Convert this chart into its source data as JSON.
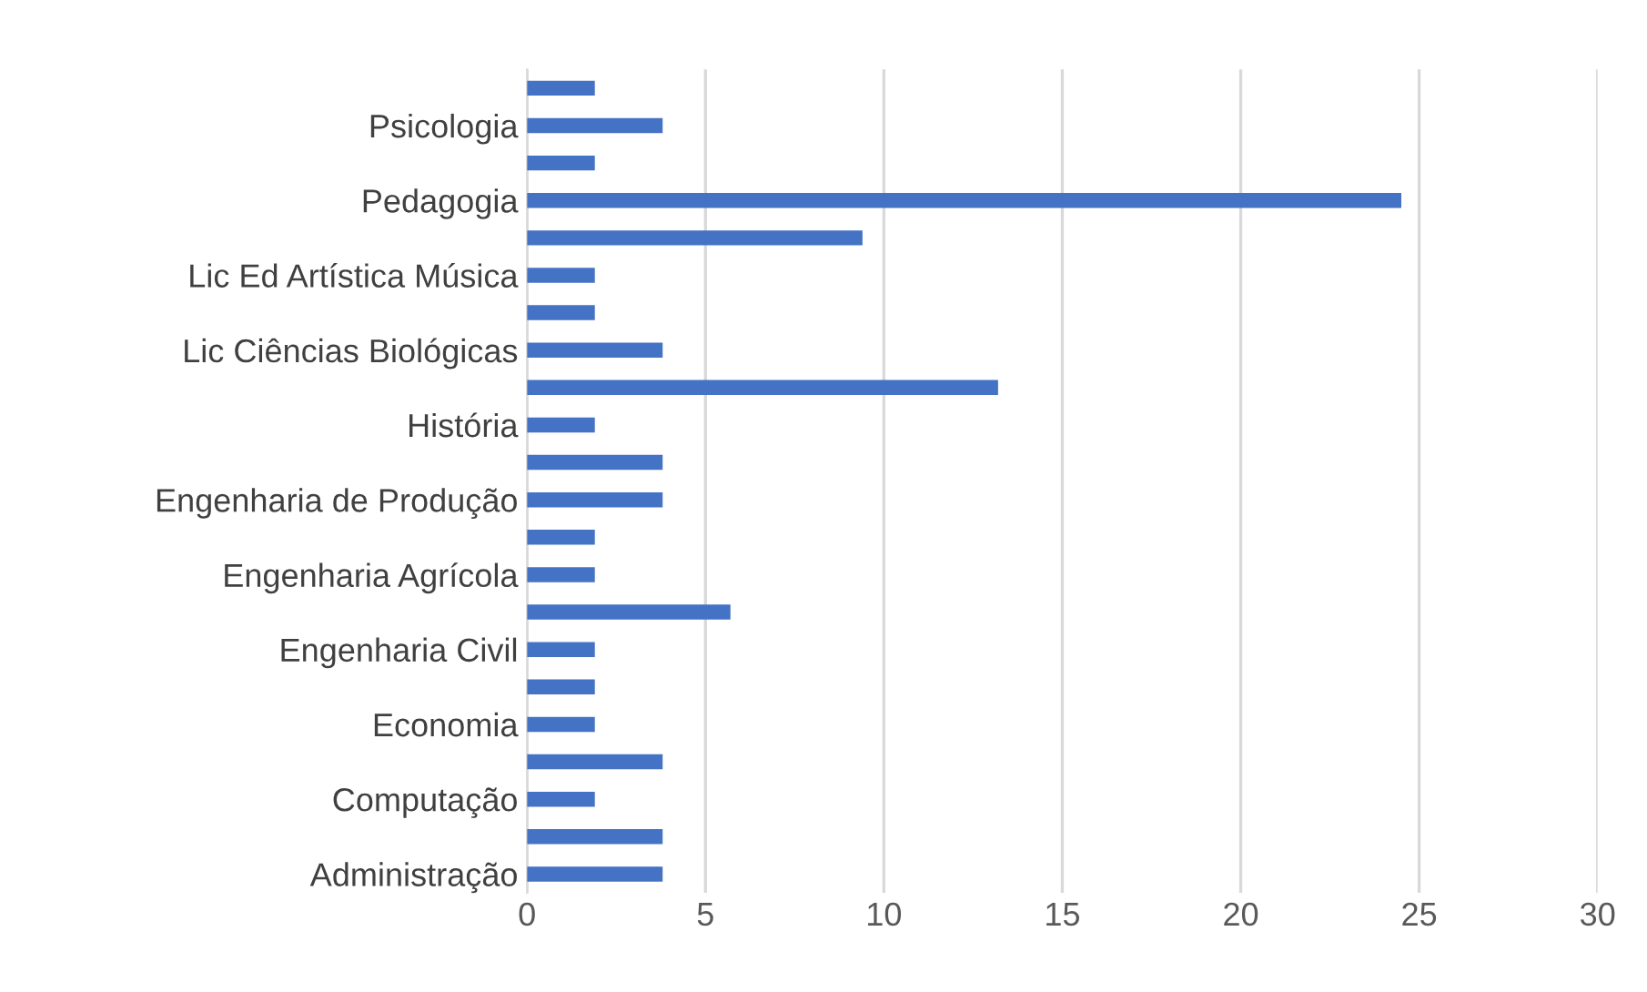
{
  "chart_data": {
    "type": "bar",
    "orientation": "horizontal",
    "categories": [
      null,
      "Psicologia",
      null,
      "Pedagogia",
      null,
      "Lic Ed Artística Música",
      null,
      "Lic Ciências Biológicas",
      null,
      "História",
      null,
      "Engenharia de Produção",
      null,
      "Engenharia Agrícola",
      null,
      "Engenharia Civil",
      null,
      "Economia",
      null,
      "Computação",
      null,
      "Administração"
    ],
    "values": [
      1.9,
      3.8,
      1.9,
      24.5,
      9.4,
      1.9,
      1.9,
      3.8,
      13.2,
      1.9,
      3.8,
      3.8,
      1.9,
      1.9,
      5.7,
      1.9,
      1.9,
      1.9,
      3.8,
      1.9,
      3.8,
      3.8
    ],
    "color": "#4472c4",
    "xlim": [
      0,
      30
    ],
    "xticks": [
      0,
      5,
      10,
      15,
      20,
      25,
      30
    ],
    "grid": "x",
    "legend": false
  }
}
